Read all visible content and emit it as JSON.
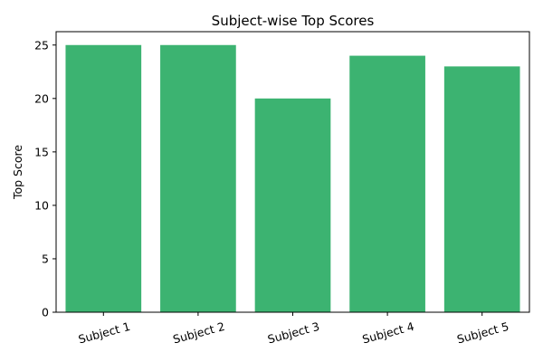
{
  "chart_data": {
    "type": "bar",
    "title": "Subject-wise Top Scores",
    "xlabel": "",
    "ylabel": "Top Score",
    "categories": [
      "Subject 1",
      "Subject 2",
      "Subject 3",
      "Subject 4",
      "Subject 5"
    ],
    "values": [
      25,
      25,
      20,
      24,
      23
    ],
    "ylim": [
      0,
      26.25
    ],
    "yticks": [
      0,
      5,
      10,
      15,
      20,
      25
    ],
    "bar_color": "#3cb371",
    "grid": false,
    "legend": "none",
    "xtick_rotation_deg": 15
  }
}
